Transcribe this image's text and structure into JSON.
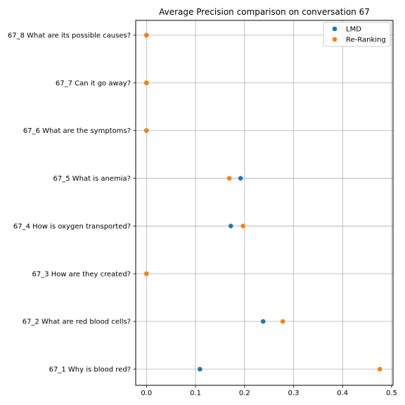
{
  "chart_data": {
    "type": "scatter",
    "title": "Average Precision comparison on conversation 67",
    "xlabel": "",
    "ylabel": "",
    "xlim": [
      -0.022,
      0.503
    ],
    "xticks": [
      0.0,
      0.1,
      0.2,
      0.3,
      0.4,
      0.5
    ],
    "xtick_labels": [
      "0.0",
      "0.1",
      "0.2",
      "0.3",
      "0.4",
      "0.5"
    ],
    "grid": true,
    "legend_position": "top-right",
    "categories": [
      "67_1 Why is blood red?",
      "67_2 What are red blood cells?",
      "67_3 How are they created?",
      "67_4 How is oxygen transported?",
      "67_5 What is anemia?",
      "67_6 What are the symptoms?",
      "67_7 Can it go away?",
      "67_8 What are its possible causes?"
    ],
    "series": [
      {
        "name": "LMD",
        "color": "#1f77b4",
        "values": [
          0.109,
          0.238,
          0.0,
          0.172,
          0.192,
          0.0,
          0.0,
          0.0
        ]
      },
      {
        "name": "Re-Ranking",
        "color": "#ff7f0e",
        "values": [
          0.476,
          0.278,
          0.0,
          0.197,
          0.169,
          0.0,
          0.0,
          0.0
        ]
      }
    ]
  }
}
